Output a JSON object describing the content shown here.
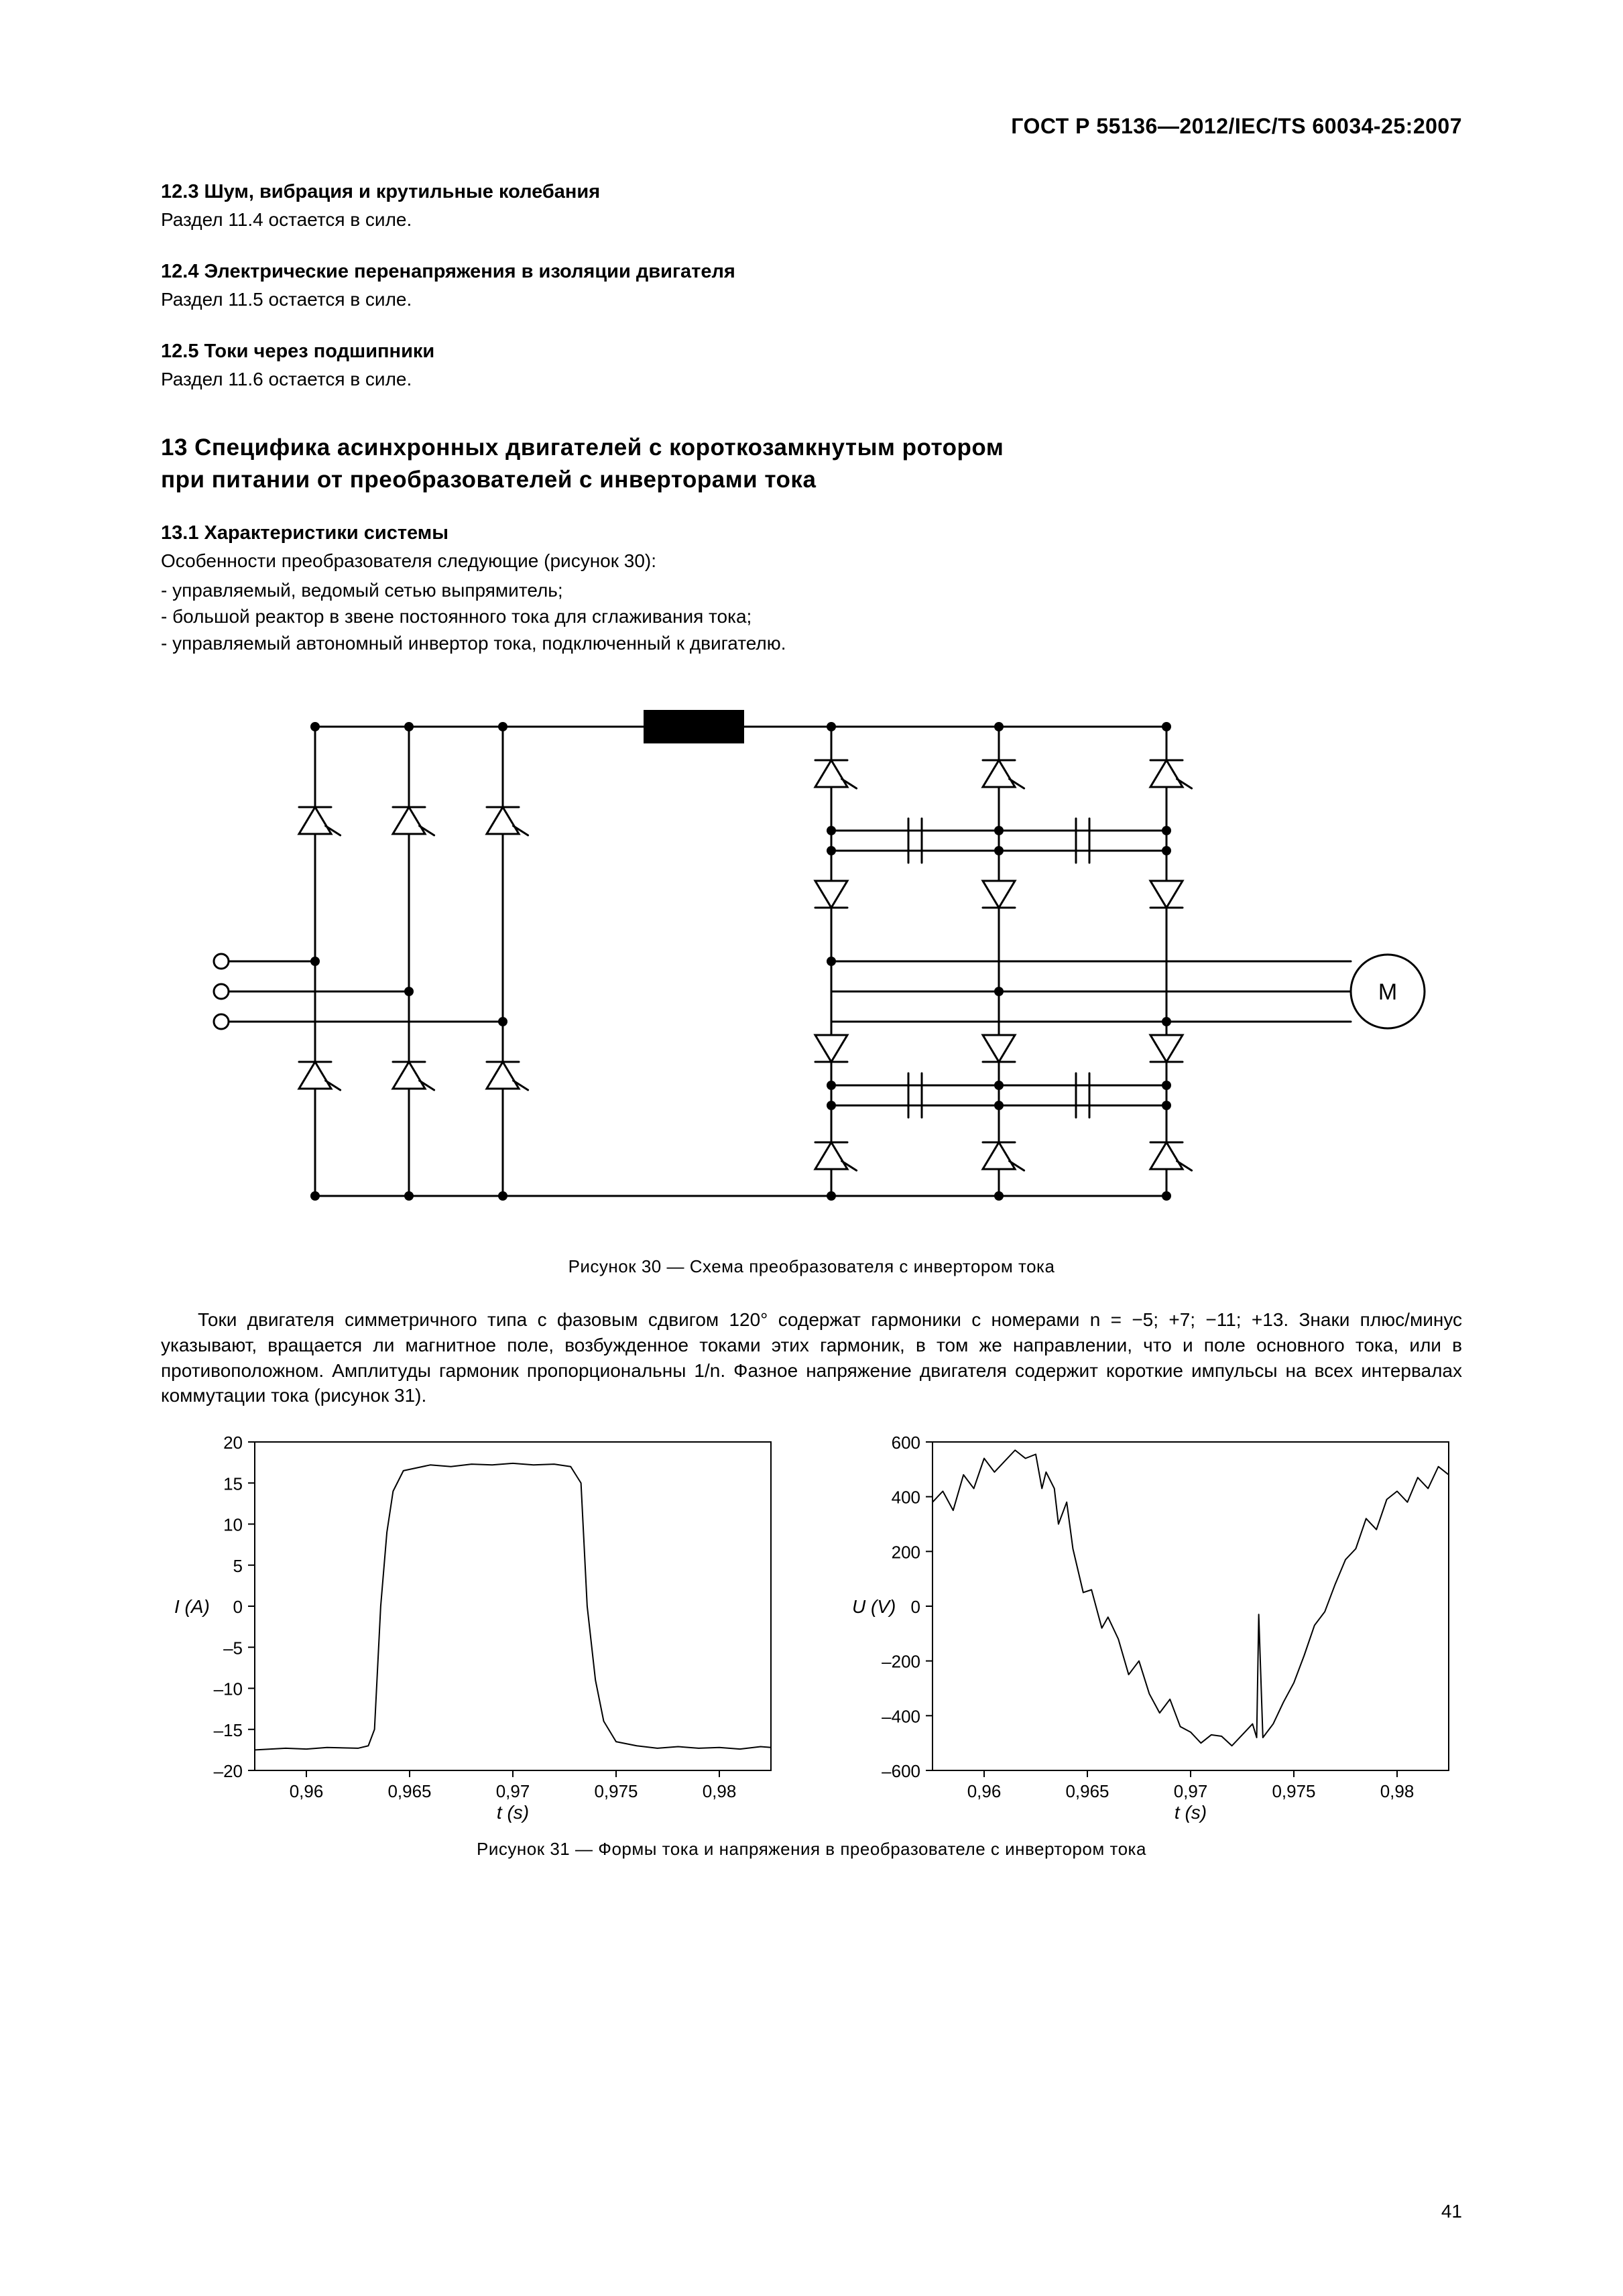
{
  "header": "ГОСТ Р 55136—2012/IEC/TS 60034-25:2007",
  "s12_3_title": "12.3 Шум, вибрация и крутильные колебания",
  "s12_3_text": "Раздел 11.4 остается в силе.",
  "s12_4_title": "12.4 Электрические перенапряжения в изоляции двигателя",
  "s12_4_text": "Раздел 11.5 остается в силе.",
  "s12_5_title": "12.5 Токи через подшипники",
  "s12_5_text": "Раздел 11.6 остается в силе.",
  "s13_title_line1": "13 Специфика асинхронных двигателей с короткозамкнутым ротором",
  "s13_title_line2": "при питании от преобразователей с инверторами тока",
  "s13_1_title": "13.1 Характеристики системы",
  "s13_1_intro": "Особенности преобразователя следующие (рисунок 30):",
  "s13_1_li1": "- управляемый, ведомый сетью выпрямитель;",
  "s13_1_li2": "- большой реактор в звене постоянного тока для сглаживания тока;",
  "s13_1_li3": "- управляемый автономный инвертор тока, подключенный к двигателю.",
  "fig30_motor_label": "M",
  "fig30_caption": "Рисунок 30 — Схема преобразователя с инвертором тока",
  "para_after_fig": "Токи двигателя симметричного типа с фазовым сдвигом 120° содержат гармоники с номерами n = −5; +7; −11; +13. Знаки плюс/минус указывают, вращается ли магнитное поле, возбужденное токами этих гармоник, в том же направлении, что и поле основного тока, или в противоположном. Амплитуды гармоник пропорциональны 1/n. Фазное напряжение двигателя содержит короткие импульсы на всех интервалах коммутации тока (рисунок 31).",
  "chart_current": {
    "type": "line",
    "ylabel": "I (A)",
    "xlabel": "t (s)",
    "ylim": [
      -20,
      20
    ],
    "ytick_step": 5,
    "yticks": [
      "20",
      "15",
      "10",
      "5",
      "0",
      "–5",
      "–10",
      "–15",
      "–20"
    ],
    "xticks": [
      "0,96",
      "0,965",
      "0,97",
      "0,975",
      "0,98"
    ],
    "xtick_vals": [
      0.96,
      0.965,
      0.97,
      0.975,
      0.98
    ],
    "line_color": "#000000",
    "grid_color": "#000000",
    "background_color": "#ffffff",
    "line_width": 2,
    "data": [
      [
        0.9575,
        -17.5
      ],
      [
        0.959,
        -17.3
      ],
      [
        0.96,
        -17.4
      ],
      [
        0.961,
        -17.2
      ],
      [
        0.9625,
        -17.3
      ],
      [
        0.963,
        -17.0
      ],
      [
        0.9633,
        -15
      ],
      [
        0.9636,
        0
      ],
      [
        0.9639,
        9
      ],
      [
        0.9642,
        14
      ],
      [
        0.9647,
        16.5
      ],
      [
        0.966,
        17.2
      ],
      [
        0.967,
        17.0
      ],
      [
        0.968,
        17.3
      ],
      [
        0.969,
        17.2
      ],
      [
        0.97,
        17.4
      ],
      [
        0.971,
        17.2
      ],
      [
        0.972,
        17.3
      ],
      [
        0.9728,
        17.0
      ],
      [
        0.9733,
        15
      ],
      [
        0.9736,
        0
      ],
      [
        0.974,
        -9
      ],
      [
        0.9744,
        -14
      ],
      [
        0.975,
        -16.5
      ],
      [
        0.976,
        -17.0
      ],
      [
        0.977,
        -17.3
      ],
      [
        0.978,
        -17.1
      ],
      [
        0.979,
        -17.3
      ],
      [
        0.98,
        -17.2
      ],
      [
        0.981,
        -17.4
      ],
      [
        0.982,
        -17.1
      ],
      [
        0.9825,
        -17.2
      ]
    ]
  },
  "chart_voltage": {
    "type": "line",
    "ylabel": "U (V)",
    "xlabel": "t (s)",
    "ylim": [
      -600,
      600
    ],
    "ytick_step": 200,
    "yticks": [
      "600",
      "400",
      "200",
      "0",
      "–200",
      "–400",
      "–600"
    ],
    "xticks": [
      "0,96",
      "0,965",
      "0,97",
      "0,975",
      "0,98"
    ],
    "xtick_vals": [
      0.96,
      0.965,
      0.97,
      0.975,
      0.98
    ],
    "line_color": "#000000",
    "grid_color": "#000000",
    "background_color": "#ffffff",
    "line_width": 2,
    "data": [
      [
        0.9575,
        380
      ],
      [
        0.958,
        420
      ],
      [
        0.9585,
        350
      ],
      [
        0.959,
        480
      ],
      [
        0.9595,
        430
      ],
      [
        0.96,
        540
      ],
      [
        0.9605,
        490
      ],
      [
        0.961,
        530
      ],
      [
        0.9615,
        570
      ],
      [
        0.962,
        540
      ],
      [
        0.9625,
        555
      ],
      [
        0.9628,
        430
      ],
      [
        0.963,
        490
      ],
      [
        0.9634,
        430
      ],
      [
        0.9636,
        300
      ],
      [
        0.964,
        380
      ],
      [
        0.9643,
        210
      ],
      [
        0.9648,
        50
      ],
      [
        0.9652,
        60
      ],
      [
        0.9657,
        -80
      ],
      [
        0.966,
        -40
      ],
      [
        0.9665,
        -120
      ],
      [
        0.967,
        -250
      ],
      [
        0.9675,
        -200
      ],
      [
        0.968,
        -320
      ],
      [
        0.9685,
        -390
      ],
      [
        0.969,
        -340
      ],
      [
        0.9695,
        -440
      ],
      [
        0.97,
        -460
      ],
      [
        0.9705,
        -500
      ],
      [
        0.971,
        -470
      ],
      [
        0.9715,
        -475
      ],
      [
        0.972,
        -510
      ],
      [
        0.9725,
        -470
      ],
      [
        0.973,
        -430
      ],
      [
        0.9732,
        -480
      ],
      [
        0.9733,
        -30
      ],
      [
        0.9735,
        -480
      ],
      [
        0.974,
        -430
      ],
      [
        0.9745,
        -350
      ],
      [
        0.975,
        -280
      ],
      [
        0.9755,
        -180
      ],
      [
        0.976,
        -70
      ],
      [
        0.9765,
        -20
      ],
      [
        0.977,
        80
      ],
      [
        0.9775,
        170
      ],
      [
        0.978,
        210
      ],
      [
        0.9785,
        320
      ],
      [
        0.979,
        280
      ],
      [
        0.9795,
        390
      ],
      [
        0.98,
        420
      ],
      [
        0.9805,
        380
      ],
      [
        0.981,
        470
      ],
      [
        0.9815,
        430
      ],
      [
        0.982,
        510
      ],
      [
        0.9825,
        480
      ]
    ]
  },
  "fig31_caption": "Рисунок 31 — Формы тока и напряжения в преобразователе с инвертором тока",
  "page_number": "41",
  "circuit": {
    "stroke": "#000000",
    "line_width": 3,
    "dot_radius": 7,
    "terminal_radius": 11,
    "inductor_fill": "#000000"
  }
}
